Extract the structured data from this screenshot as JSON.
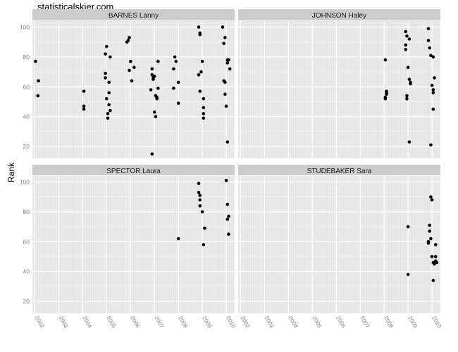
{
  "watermark": "statisticalskier.com",
  "colors": {
    "panel_bg": "#e5e5e5",
    "strip_bg": "#cccccc",
    "grid_major": "#ffffff",
    "grid_minor": "#f2f2f2",
    "point": "#000000",
    "tick_text": "#7f7f7f"
  },
  "chart_data": {
    "type": "scatter",
    "layout": "facet_wrap",
    "ylabel": "Rank",
    "xlabel": "",
    "x_ticks": [
      "2002",
      "2003",
      "2004",
      "2005",
      "2006",
      "2007",
      "2008",
      "2009",
      "2010"
    ],
    "y_ticks": [
      20,
      40,
      60,
      80,
      100
    ],
    "xlim": [
      2001.9,
      2010.35
    ],
    "ylim": [
      12,
      104
    ],
    "grid": true,
    "facets": [
      {
        "name": "BARNES Lanny",
        "points": [
          [
            2002.03,
            77
          ],
          [
            2002.15,
            64
          ],
          [
            2002.13,
            54
          ],
          [
            2004.05,
            57
          ],
          [
            2004.05,
            47
          ],
          [
            2004.05,
            45
          ],
          [
            2004.95,
            82
          ],
          [
            2004.95,
            69
          ],
          [
            2004.95,
            66
          ],
          [
            2005.0,
            87
          ],
          [
            2005.0,
            52
          ],
          [
            2005.05,
            39
          ],
          [
            2005.05,
            42
          ],
          [
            2005.1,
            48
          ],
          [
            2005.1,
            63
          ],
          [
            2005.1,
            56
          ],
          [
            2005.15,
            44
          ],
          [
            2005.15,
            80
          ],
          [
            2005.85,
            90
          ],
          [
            2005.9,
            91
          ],
          [
            2005.95,
            93
          ],
          [
            2005.95,
            71
          ],
          [
            2006.0,
            77
          ],
          [
            2006.05,
            64
          ],
          [
            2006.15,
            73
          ],
          [
            2006.85,
            58
          ],
          [
            2006.9,
            72
          ],
          [
            2006.9,
            68
          ],
          [
            2006.95,
            65
          ],
          [
            2006.95,
            66
          ],
          [
            2007.0,
            43
          ],
          [
            2007.0,
            67
          ],
          [
            2007.05,
            40
          ],
          [
            2007.05,
            54
          ],
          [
            2007.1,
            52
          ],
          [
            2007.1,
            53
          ],
          [
            2007.15,
            59
          ],
          [
            2007.15,
            77
          ],
          [
            2006.9,
            15
          ],
          [
            2007.8,
            72
          ],
          [
            2007.8,
            59
          ],
          [
            2007.85,
            80
          ],
          [
            2007.9,
            77
          ],
          [
            2008.0,
            49
          ],
          [
            2008.0,
            63
          ],
          [
            2008.85,
            100
          ],
          [
            2008.9,
            96
          ],
          [
            2008.9,
            95
          ],
          [
            2008.85,
            68
          ],
          [
            2008.9,
            57
          ],
          [
            2008.95,
            70
          ],
          [
            2009.0,
            77
          ],
          [
            2009.05,
            52
          ],
          [
            2009.05,
            46
          ],
          [
            2009.05,
            42
          ],
          [
            2009.05,
            39
          ],
          [
            2009.85,
            100
          ],
          [
            2009.9,
            89
          ],
          [
            2009.95,
            93
          ],
          [
            2009.9,
            64
          ],
          [
            2009.95,
            63
          ],
          [
            2009.95,
            55
          ],
          [
            2010.0,
            47
          ],
          [
            2010.05,
            76
          ],
          [
            2010.05,
            78
          ],
          [
            2010.1,
            78
          ],
          [
            2010.15,
            72
          ],
          [
            2010.05,
            23
          ]
        ]
      },
      {
        "name": "JOHNSON Haley",
        "points": [
          [
            2008.05,
            78
          ],
          [
            2008.05,
            53
          ],
          [
            2008.05,
            52
          ],
          [
            2008.1,
            57
          ],
          [
            2008.1,
            56
          ],
          [
            2008.1,
            55
          ],
          [
            2008.9,
            97
          ],
          [
            2008.9,
            85
          ],
          [
            2008.9,
            88
          ],
          [
            2008.95,
            94
          ],
          [
            2008.95,
            54
          ],
          [
            2008.95,
            52
          ],
          [
            2009.0,
            73
          ],
          [
            2009.05,
            92
          ],
          [
            2009.05,
            65
          ],
          [
            2009.1,
            62
          ],
          [
            2009.1,
            63
          ],
          [
            2009.05,
            23
          ],
          [
            2009.85,
            99
          ],
          [
            2009.85,
            91
          ],
          [
            2009.9,
            86
          ],
          [
            2009.95,
            81
          ],
          [
            2009.95,
            21
          ],
          [
            2010.0,
            61
          ],
          [
            2010.05,
            80
          ],
          [
            2010.05,
            58
          ],
          [
            2010.05,
            56
          ],
          [
            2010.05,
            45
          ],
          [
            2010.1,
            66
          ]
        ]
      },
      {
        "name": "SPECTOR Laura",
        "points": [
          [
            2008.0,
            62
          ],
          [
            2008.85,
            99
          ],
          [
            2008.85,
            93
          ],
          [
            2008.9,
            91
          ],
          [
            2008.9,
            88
          ],
          [
            2008.9,
            84
          ],
          [
            2009.0,
            80
          ],
          [
            2009.05,
            58
          ],
          [
            2009.1,
            69
          ],
          [
            2009.1,
            69
          ],
          [
            2010.0,
            101
          ],
          [
            2010.05,
            85
          ],
          [
            2010.05,
            75
          ],
          [
            2010.1,
            77
          ],
          [
            2010.1,
            65
          ]
        ]
      },
      {
        "name": "STUDEBAKER Sara",
        "points": [
          [
            2009.0,
            70
          ],
          [
            2009.0,
            38
          ],
          [
            2009.85,
            60
          ],
          [
            2009.85,
            59
          ],
          [
            2009.9,
            71
          ],
          [
            2009.9,
            67
          ],
          [
            2009.95,
            90
          ],
          [
            2009.95,
            62
          ],
          [
            2010.0,
            88
          ],
          [
            2010.0,
            50
          ],
          [
            2010.05,
            46
          ],
          [
            2010.05,
            34
          ],
          [
            2010.1,
            45
          ],
          [
            2010.15,
            47
          ],
          [
            2010.15,
            58
          ],
          [
            2010.15,
            50
          ],
          [
            2010.2,
            46
          ]
        ]
      }
    ]
  }
}
